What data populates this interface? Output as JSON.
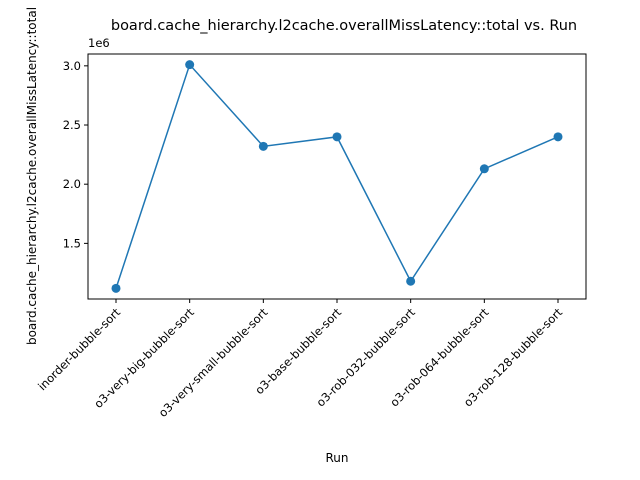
{
  "chart_data": {
    "type": "line",
    "title": "board.cache_hierarchy.l2cache.overallMissLatency::total vs. Run",
    "xlabel": "Run",
    "ylabel": "board.cache_hierarchy.l2cache.overallMissLatency::total",
    "y_offset_label": "1e6",
    "categories": [
      "inorder-bubble-sort",
      "o3-very-big-bubble-sort",
      "o3-very-small-bubble-sort",
      "o3-base-bubble-sort",
      "o3-rob-032-bubble-sort",
      "o3-rob-064-bubble-sort",
      "o3-rob-128-bubble-sort"
    ],
    "series": [
      {
        "values": [
          1120000,
          3010000,
          2320000,
          2400000,
          1180000,
          2130000,
          2400000
        ],
        "color": "#1f77b4",
        "marker": "circle"
      }
    ],
    "yticks": [
      1.5,
      2.0,
      2.5,
      3.0
    ],
    "ytick_labels": [
      "1.5",
      "2.0",
      "2.5",
      "3.0"
    ],
    "ylim": [
      1030000,
      3100000
    ],
    "grid": false,
    "legend": false
  }
}
